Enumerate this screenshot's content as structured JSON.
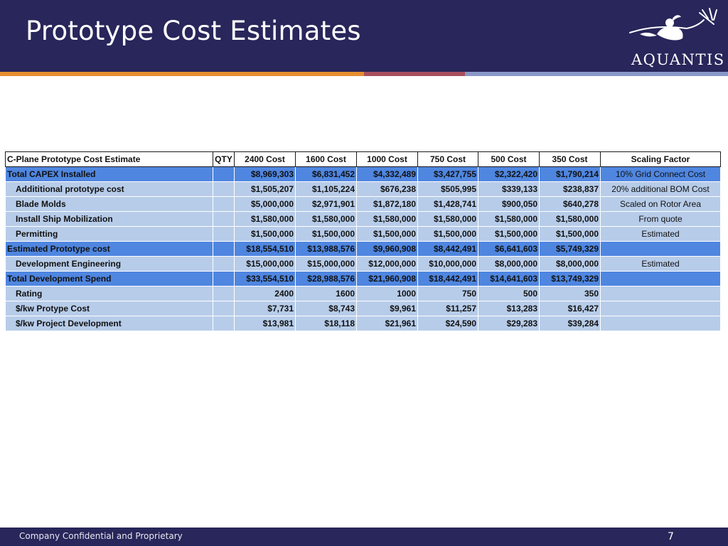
{
  "slide": {
    "title": "Prototype Cost Estimates",
    "logo_text": "AQUANTIS",
    "footer_text": "Company Confidential and Proprietary",
    "page_number": "7"
  },
  "colors": {
    "header_bg": "#28265a",
    "stripe_orange": "#e58d2f",
    "stripe_maroon": "#a84f5e",
    "stripe_lavender": "#8a98c8",
    "row_highlight": "#4f86e0",
    "row_normal": "#b7cce9"
  },
  "table": {
    "headers": [
      "C-Plane Prototype Cost Estimate",
      "QTY",
      "2400 Cost",
      "1600 Cost",
      "1000 Cost",
      "750 Cost",
      "500 Cost",
      "350 Cost",
      "Scaling Factor"
    ],
    "rows": [
      {
        "label": "Total CAPEX Installed",
        "highlight": true,
        "qty": "",
        "values": [
          "$8,969,303",
          "$6,831,452",
          "$4,332,489",
          "$3,427,755",
          "$2,322,420",
          "$1,790,214"
        ],
        "scaling": "10% Grid Connect Cost"
      },
      {
        "label": "Addititional prototype cost",
        "highlight": false,
        "qty": "",
        "values": [
          "$1,505,207",
          "$1,105,224",
          "$676,238",
          "$505,995",
          "$339,133",
          "$238,837"
        ],
        "scaling": "20% additional BOM Cost"
      },
      {
        "label": "Blade Molds",
        "highlight": false,
        "qty": "",
        "values": [
          "$5,000,000",
          "$2,971,901",
          "$1,872,180",
          "$1,428,741",
          "$900,050",
          "$640,278"
        ],
        "scaling": "Scaled on Rotor Area"
      },
      {
        "label": "Install Ship Mobilization",
        "highlight": false,
        "qty": "",
        "values": [
          "$1,580,000",
          "$1,580,000",
          "$1,580,000",
          "$1,580,000",
          "$1,580,000",
          "$1,580,000"
        ],
        "scaling": "From quote"
      },
      {
        "label": "Permitting",
        "highlight": false,
        "qty": "",
        "values": [
          "$1,500,000",
          "$1,500,000",
          "$1,500,000",
          "$1,500,000",
          "$1,500,000",
          "$1,500,000"
        ],
        "scaling": "Estimated"
      },
      {
        "label": "Estimated Prototype cost",
        "highlight": true,
        "qty": "",
        "values": [
          "$18,554,510",
          "$13,988,576",
          "$9,960,908",
          "$8,442,491",
          "$6,641,603",
          "$5,749,329"
        ],
        "scaling": ""
      },
      {
        "label": "Development Engineering",
        "highlight": false,
        "qty": "",
        "values": [
          "$15,000,000",
          "$15,000,000",
          "$12,000,000",
          "$10,000,000",
          "$8,000,000",
          "$8,000,000"
        ],
        "scaling": "Estimated"
      },
      {
        "label": "Total Development Spend",
        "highlight": true,
        "qty": "",
        "values": [
          "$33,554,510",
          "$28,988,576",
          "$21,960,908",
          "$18,442,491",
          "$14,641,603",
          "$13,749,329"
        ],
        "scaling": ""
      },
      {
        "label": "Rating",
        "highlight": false,
        "qty": "",
        "values": [
          "2400",
          "1600",
          "1000",
          "750",
          "500",
          "350"
        ],
        "scaling": ""
      },
      {
        "label": "$/kw Protype Cost",
        "highlight": false,
        "qty": "",
        "values": [
          "$7,731",
          "$8,743",
          "$9,961",
          "$11,257",
          "$13,283",
          "$16,427"
        ],
        "scaling": ""
      },
      {
        "label": "$/kw Project Development",
        "highlight": false,
        "qty": "",
        "values": [
          "$13,981",
          "$18,118",
          "$21,961",
          "$24,590",
          "$29,283",
          "$39,284"
        ],
        "scaling": ""
      }
    ]
  }
}
